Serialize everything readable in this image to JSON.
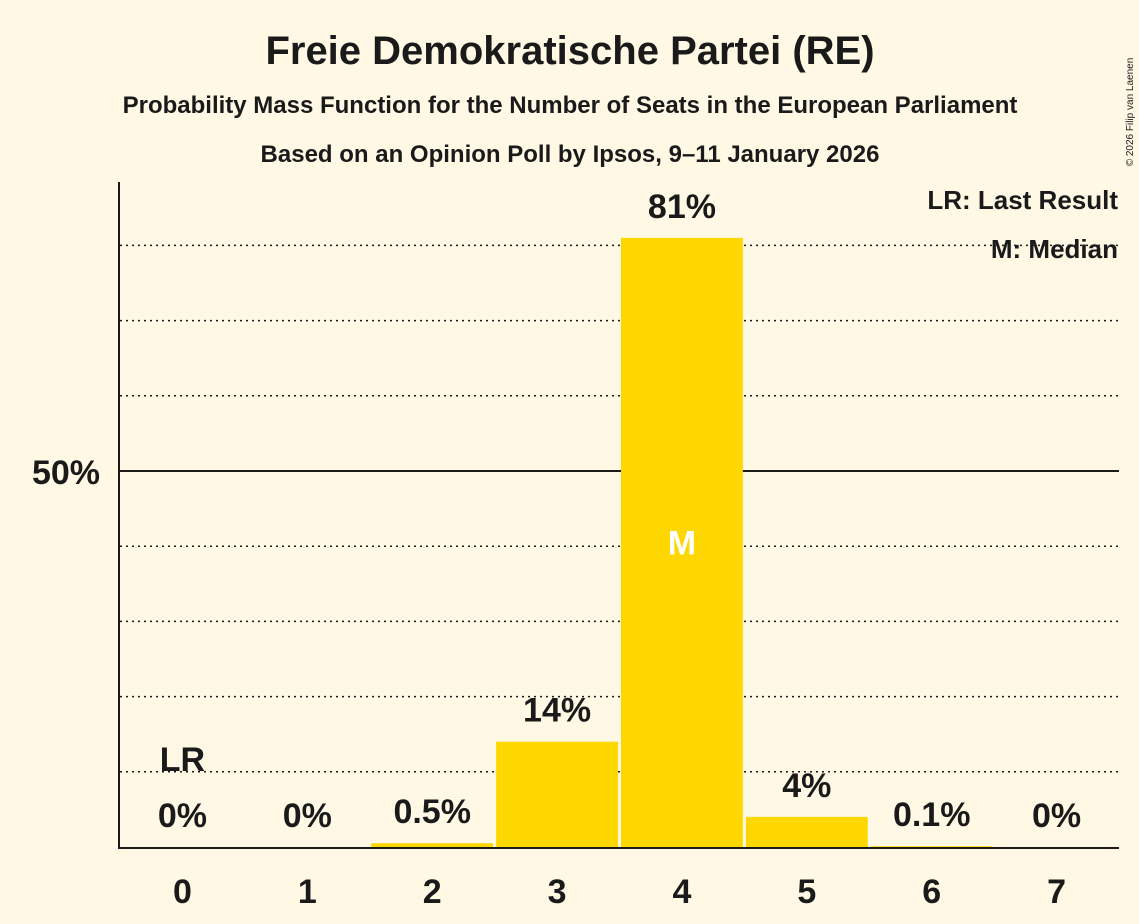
{
  "chart_data": {
    "type": "bar",
    "title": "Freie Demokratische Partei (RE)",
    "subtitle": "Probability Mass Function for the Number of Seats in the European Parliament",
    "source": "Based on an Opinion Poll by Ipsos, 9–11 January 2026",
    "categories": [
      "0",
      "1",
      "2",
      "3",
      "4",
      "5",
      "6",
      "7"
    ],
    "values": [
      0,
      0,
      0.5,
      14,
      81,
      4,
      0.1,
      0
    ],
    "value_labels": [
      "0%",
      "0%",
      "0.5%",
      "14%",
      "81%",
      "4%",
      "0.1%",
      "0%"
    ],
    "ylim": [
      0,
      88
    ],
    "y_tick_label": "50%",
    "y_tick_value": 50,
    "gridlines": [
      10,
      20,
      30,
      40,
      60,
      70,
      80
    ],
    "last_result_index": 0,
    "median_index": 4,
    "lr_marker": "LR",
    "median_marker": "M",
    "legend": [
      "LR: Last Result",
      "M: Median"
    ],
    "copyright": "© 2026 Filip van Laenen",
    "bar_color": "#ffd700",
    "background": "#fef8e4"
  }
}
